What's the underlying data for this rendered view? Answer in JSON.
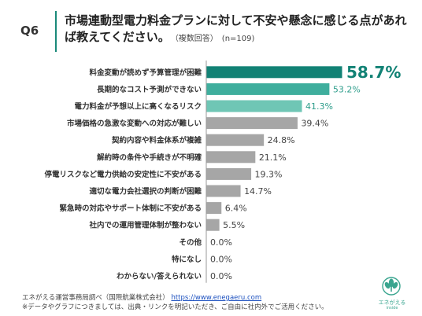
{
  "question": {
    "number": "Q6",
    "title": "市場連動型電力料金プランに対して不安や懸念に感じる点があれば教えてください。",
    "note": "（複数回答）　(n=109)"
  },
  "chart_data": {
    "type": "bar",
    "orientation": "horizontal",
    "unit": "%",
    "categories": [
      "料金変動が読めず予算管理が困難",
      "長期的なコスト予測ができない",
      "電力料金が予想以上に高くなるリスク",
      "市場価格の急激な変動への対応が難しい",
      "契約内容や料金体系が複雑",
      "解約時の条件や手続きが不明確",
      "停電リスクなど電力供給の安定性に不安がある",
      "適切な電力会社選択の判断が困難",
      "緊急時の対応やサポート体制に不安がある",
      "社内での運用管理体制が整わない",
      "その他",
      "特になし",
      "わからない/答えられない"
    ],
    "values": [
      58.7,
      53.2,
      41.3,
      39.4,
      24.8,
      21.1,
      19.3,
      14.7,
      6.4,
      5.5,
      0.0,
      0.0,
      0.0
    ],
    "labels": [
      "58.7%",
      "53.2%",
      "41.3%",
      "39.4%",
      "24.8%",
      "21.1%",
      "19.3%",
      "14.7%",
      "6.4%",
      "5.5%",
      "0.0%",
      "0.0%",
      "0.0%"
    ],
    "bar_colors": [
      "#128275",
      "#3fae9d",
      "#6fc6b5",
      "#a6a6a6",
      "#a6a6a6",
      "#a6a6a6",
      "#a6a6a6",
      "#a6a6a6",
      "#a6a6a6",
      "#a6a6a6",
      "#a6a6a6",
      "#a6a6a6",
      "#a6a6a6"
    ],
    "label_colors": [
      "#128275",
      "#2f9e8c",
      "#2f9e8c",
      "#444444",
      "#444444",
      "#444444",
      "#444444",
      "#444444",
      "#444444",
      "#444444",
      "#444444",
      "#444444",
      "#444444"
    ],
    "xlim": [
      0,
      70
    ],
    "grid": false
  },
  "footer": {
    "source": "エネがえる運営事務局調べ（国際航業株式会社）",
    "url": "https://www.enegaeru.com",
    "note": "※データやグラフにつきましては、出典・リンクを明記いただき、ご自由に社内外でご活用ください。"
  },
  "logo": {
    "text": "エネがえる",
    "sub": "inside",
    "color": "#3aa58f"
  }
}
